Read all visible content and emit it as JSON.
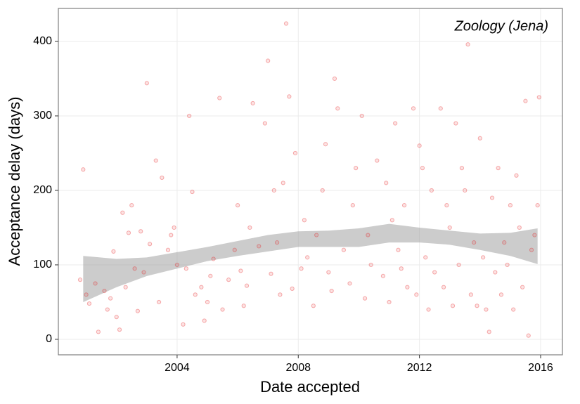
{
  "chart_data": {
    "type": "scatter",
    "annotation": "Zoology (Jena)",
    "xlabel": "Date accepted",
    "ylabel": "Acceptance delay (days)",
    "xlim": [
      2000.08,
      2016.72
    ],
    "ylim": [
      -20.8,
      444.3
    ],
    "xticks": [
      2004,
      2008,
      2012,
      2016
    ],
    "yticks": [
      0,
      100,
      200,
      300,
      400
    ],
    "grid": true,
    "series": [
      {
        "color": "#e41a1c",
        "x": [
          2000.8,
          2000.9,
          2001.0,
          2001.1,
          2001.3,
          2001.4,
          2001.6,
          2001.7,
          2001.8,
          2001.9,
          2002.0,
          2002.1,
          2002.2,
          2002.3,
          2002.4,
          2002.5,
          2002.6,
          2002.7,
          2002.8,
          2002.9,
          2003.0,
          2003.1,
          2003.3,
          2003.4,
          2003.5,
          2003.7,
          2003.8,
          2003.9,
          2004.0,
          2004.2,
          2004.3,
          2004.4,
          2004.5,
          2004.6,
          2004.8,
          2004.9,
          2005.0,
          2005.1,
          2005.2,
          2005.4,
          2005.5,
          2005.7,
          2005.9,
          2006.0,
          2006.1,
          2006.2,
          2006.3,
          2006.4,
          2006.5,
          2006.7,
          2006.9,
          2007.0,
          2007.1,
          2007.2,
          2007.3,
          2007.4,
          2007.5,
          2007.6,
          2007.7,
          2007.8,
          2007.9,
          2008.1,
          2008.2,
          2008.3,
          2008.5,
          2008.6,
          2008.8,
          2008.9,
          2009.0,
          2009.1,
          2009.2,
          2009.3,
          2009.5,
          2009.7,
          2009.8,
          2009.9,
          2010.1,
          2010.2,
          2010.3,
          2010.4,
          2010.6,
          2010.8,
          2010.9,
          2011.0,
          2011.1,
          2011.2,
          2011.3,
          2011.4,
          2011.5,
          2011.6,
          2011.8,
          2011.9,
          2012.0,
          2012.1,
          2012.2,
          2012.3,
          2012.4,
          2012.5,
          2012.7,
          2012.8,
          2012.9,
          2013.0,
          2013.1,
          2013.2,
          2013.3,
          2013.4,
          2013.5,
          2013.6,
          2013.7,
          2013.8,
          2013.9,
          2014.0,
          2014.1,
          2014.2,
          2014.3,
          2014.4,
          2014.5,
          2014.6,
          2014.7,
          2014.8,
          2014.9,
          2015.0,
          2015.1,
          2015.2,
          2015.3,
          2015.4,
          2015.5,
          2015.6,
          2015.7,
          2015.8,
          2015.9,
          2015.95
        ],
        "y": [
          80,
          228,
          60,
          48,
          75,
          10,
          65,
          40,
          55,
          118,
          30,
          13,
          170,
          70,
          143,
          180,
          95,
          38,
          145,
          90,
          344,
          128,
          240,
          50,
          217,
          120,
          140,
          150,
          100,
          20,
          95,
          300,
          198,
          60,
          70,
          25,
          50,
          85,
          108,
          324,
          40,
          80,
          120,
          180,
          92,
          45,
          72,
          150,
          317,
          125,
          290,
          374,
          88,
          200,
          130,
          60,
          210,
          424,
          326,
          68,
          250,
          95,
          160,
          110,
          45,
          140,
          200,
          262,
          90,
          65,
          350,
          310,
          120,
          75,
          180,
          230,
          300,
          55,
          140,
          100,
          240,
          85,
          210,
          50,
          160,
          290,
          120,
          95,
          180,
          70,
          310,
          60,
          260,
          230,
          110,
          40,
          200,
          90,
          310,
          70,
          180,
          150,
          45,
          290,
          100,
          230,
          200,
          396,
          60,
          130,
          45,
          270,
          110,
          40,
          10,
          190,
          90,
          230,
          60,
          130,
          100,
          180,
          40,
          220,
          150,
          70,
          320,
          5,
          120,
          140,
          180,
          325
        ]
      }
    ],
    "band": {
      "color": "#999999",
      "x": [
        2000.9,
        2002,
        2003,
        2004,
        2005,
        2006,
        2007,
        2008,
        2009,
        2010,
        2011,
        2012,
        2013,
        2014,
        2015,
        2015.9
      ],
      "upper": [
        112,
        108,
        110,
        117,
        124,
        132,
        140,
        145,
        146,
        149,
        155,
        150,
        146,
        142,
        143,
        149
      ],
      "lower": [
        50,
        70,
        85,
        95,
        105,
        112,
        118,
        124,
        124,
        124,
        130,
        130,
        127,
        120,
        112,
        101
      ]
    }
  }
}
